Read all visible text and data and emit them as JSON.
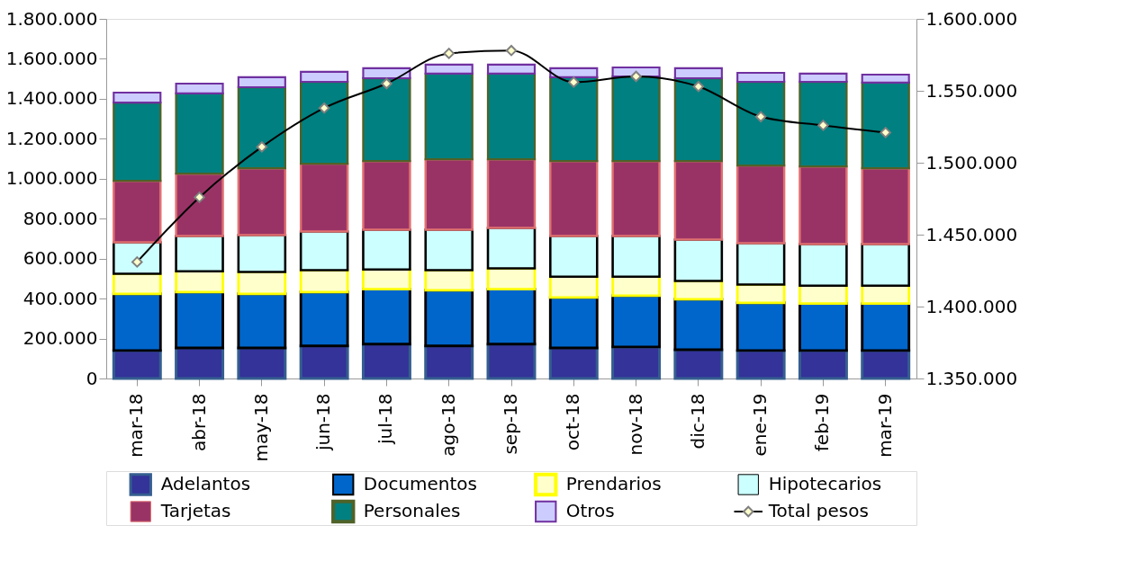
{
  "chart_data": {
    "type": "bar",
    "stacked": true,
    "legend": "bottom",
    "categories": [
      "mar-18",
      "abr-18",
      "may-18",
      "jun-18",
      "jul-18",
      "ago-18",
      "sep-18",
      "oct-18",
      "nov-18",
      "dic-18",
      "ene-19",
      "feb-19",
      "mar-19"
    ],
    "ylim": [
      0,
      1800000
    ],
    "yticks": [
      0,
      {
        "value": 200000,
        "label": "200.000"
      },
      {
        "value": 400000,
        "label": "400.000"
      },
      {
        "value": 600000,
        "label": "600.000"
      },
      {
        "value": 800000,
        "label": "800.000"
      },
      {
        "value": 1000000,
        "label": "1.000.000"
      },
      {
        "value": 1200000,
        "label": "1.200.000"
      },
      {
        "value": 1400000,
        "label": "1.400.000"
      },
      {
        "value": 1600000,
        "label": "1.600.000"
      },
      {
        "value": 1800000,
        "label": "1.800.000"
      }
    ],
    "y2lim": [
      1350000,
      1600000
    ],
    "y2ticks": [
      {
        "value": 1350000,
        "label": "1.350.000"
      },
      {
        "value": 1400000,
        "label": "1.400.000"
      },
      {
        "value": 1450000,
        "label": "1.450.000"
      },
      {
        "value": 1500000,
        "label": "1.500.000"
      },
      {
        "value": 1550000,
        "label": "1.550.000"
      },
      {
        "value": 1600000,
        "label": "1.600.000"
      }
    ],
    "series": [
      {
        "name": "Adelantos",
        "color": "#333399",
        "values": [
          140000,
          153000,
          153000,
          163000,
          172000,
          163000,
          172000,
          153000,
          158000,
          144000,
          140000,
          140000,
          140000
        ]
      },
      {
        "name": "Documentos",
        "color": "#0066cc",
        "values": [
          284000,
          280000,
          271000,
          270000,
          275000,
          279000,
          275000,
          253000,
          257000,
          253000,
          239000,
          235000,
          235000
        ]
      },
      {
        "name": "Prendarios",
        "color": "#ffffcc",
        "values": [
          100000,
          104000,
          109000,
          109000,
          99000,
          100000,
          104000,
          104000,
          95000,
          91000,
          91000,
          90000,
          90000
        ]
      },
      {
        "name": "Hipotecarios",
        "color": "#ccffff",
        "values": [
          158000,
          176000,
          185000,
          194000,
          199000,
          203000,
          203000,
          203000,
          203000,
          207000,
          207000,
          208000,
          208000
        ]
      },
      {
        "name": "Tarjetas",
        "color": "#993366",
        "values": [
          307000,
          312000,
          334000,
          339000,
          343000,
          352000,
          343000,
          375000,
          375000,
          393000,
          389000,
          388000,
          379000
        ]
      },
      {
        "name": "Personales",
        "color": "#008080",
        "values": [
          392000,
          402000,
          406000,
          410000,
          415000,
          429000,
          429000,
          420000,
          424000,
          415000,
          419000,
          424000,
          429000
        ]
      },
      {
        "name": "Otros",
        "color": "#ccccff",
        "values": [
          50000,
          49000,
          50000,
          50000,
          50000,
          45000,
          45000,
          45000,
          45000,
          50000,
          45000,
          41000,
          40000
        ]
      },
      {
        "name": "Total pesos",
        "type": "line",
        "axis": "y2",
        "marker": "diamond",
        "color": "#000000",
        "values": [
          1431000,
          1476000,
          1511000,
          1538000,
          1555000,
          1576000,
          1578000,
          1556000,
          1560000,
          1553000,
          1532000,
          1526000,
          1521000
        ]
      }
    ]
  }
}
